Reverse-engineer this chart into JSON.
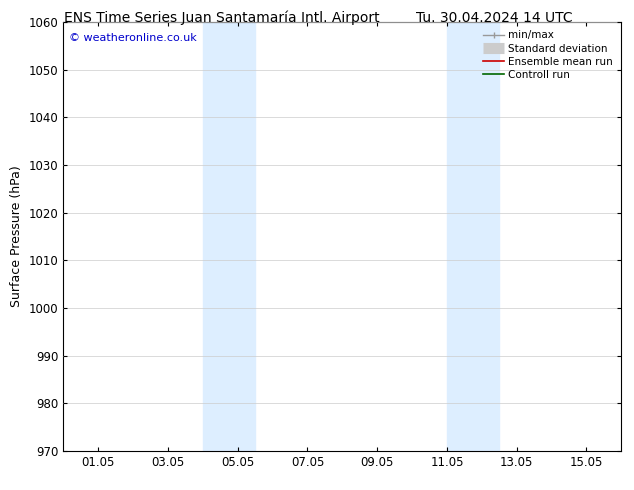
{
  "title_left": "ENS Time Series Juan Santamaría Intl. Airport",
  "title_right": "Tu. 30.04.2024 14 UTC",
  "ylabel": "Surface Pressure (hPa)",
  "ylim": [
    970,
    1060
  ],
  "yticks": [
    970,
    980,
    990,
    1000,
    1010,
    1020,
    1030,
    1040,
    1050,
    1060
  ],
  "xtick_labels": [
    "01.05",
    "03.05",
    "05.05",
    "07.05",
    "09.05",
    "11.05",
    "13.05",
    "15.05"
  ],
  "xtick_positions": [
    1,
    3,
    5,
    7,
    9,
    11,
    13,
    15
  ],
  "xlim": [
    0,
    16
  ],
  "shaded_bands": [
    {
      "x_start": 4.0,
      "x_end": 5.5
    },
    {
      "x_start": 11.0,
      "x_end": 12.5
    }
  ],
  "shaded_color": "#ddeeff",
  "watermark_text": "© weatheronline.co.uk",
  "watermark_color": "#0000cc",
  "background_color": "#ffffff",
  "grid_color": "#cccccc",
  "spine_color": "#000000",
  "title_fontsize": 10,
  "label_fontsize": 9,
  "tick_fontsize": 8.5,
  "legend_no_frame": true
}
